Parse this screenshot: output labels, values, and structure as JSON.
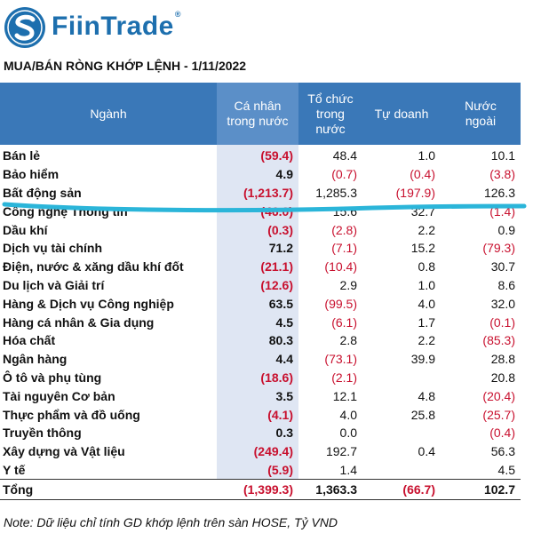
{
  "brand": {
    "name": "FiinTrade",
    "trademark": "®",
    "logo_icon": "fiintrade-s-logo-icon",
    "color": "#1d6fae"
  },
  "title": "MUA/BÁN RÒNG KHỚP LỆNH - 1/11/2022",
  "table": {
    "headers": [
      "Ngành",
      "Cá nhân trong nước",
      "Tổ chức trong nước",
      "Tự doanh",
      "Nước ngoài"
    ],
    "header_lines": [
      [
        "Ngành"
      ],
      [
        "Cá nhân",
        "trong nước"
      ],
      [
        "Tổ chức",
        "trong",
        "nước"
      ],
      [
        "Tự doanh"
      ],
      [
        "Nước",
        "ngoài"
      ]
    ],
    "rows": [
      {
        "name": "Bán lẻ",
        "values": [
          "(59.4)",
          "48.4",
          "1.0",
          "10.1"
        ]
      },
      {
        "name": "Bảo hiểm",
        "values": [
          "4.9",
          "(0.7)",
          "(0.4)",
          "(3.8)"
        ]
      },
      {
        "name": "Bất động sản",
        "values": [
          "(1,213.7)",
          "1,285.3",
          "(197.9)",
          "126.3"
        ]
      },
      {
        "name": "Công nghệ Thông tin",
        "values": [
          "(46.0)",
          "15.6",
          "32.7",
          "(1.4)"
        ]
      },
      {
        "name": "Dầu khí",
        "values": [
          "(0.3)",
          "(2.8)",
          "2.2",
          "0.9"
        ]
      },
      {
        "name": "Dịch vụ tài chính",
        "values": [
          "71.2",
          "(7.1)",
          "15.2",
          "(79.3)"
        ]
      },
      {
        "name": "Điện, nước & xăng dầu khí đốt",
        "values": [
          "(21.1)",
          "(10.4)",
          "0.8",
          "30.7"
        ]
      },
      {
        "name": "Du lịch và Giải trí",
        "values": [
          "(12.6)",
          "2.9",
          "1.0",
          "8.6"
        ]
      },
      {
        "name": "Hàng & Dịch vụ Công nghiệp",
        "values": [
          "63.5",
          "(99.5)",
          "4.0",
          "32.0"
        ]
      },
      {
        "name": "Hàng cá nhân & Gia dụng",
        "values": [
          "4.5",
          "(6.1)",
          "1.7",
          "(0.1)"
        ]
      },
      {
        "name": "Hóa chất",
        "values": [
          "80.3",
          "2.8",
          "2.2",
          "(85.3)"
        ]
      },
      {
        "name": "Ngân hàng",
        "values": [
          "4.4",
          "(73.1)",
          "39.9",
          "28.8"
        ]
      },
      {
        "name": "Ô tô và phụ tùng",
        "values": [
          "(18.6)",
          "(2.1)",
          "",
          "20.8"
        ]
      },
      {
        "name": "Tài nguyên Cơ bản",
        "values": [
          "3.5",
          "12.1",
          "4.8",
          "(20.4)"
        ]
      },
      {
        "name": "Thực phẩm và đồ uống",
        "values": [
          "(4.1)",
          "4.0",
          "25.8",
          "(25.7)"
        ]
      },
      {
        "name": "Truyền thông",
        "values": [
          "0.3",
          "0.0",
          "",
          "(0.4)"
        ]
      },
      {
        "name": "Xây dựng và Vật liệu",
        "values": [
          "(249.4)",
          "192.7",
          "0.4",
          "56.3"
        ]
      },
      {
        "name": "Y tế",
        "values": [
          "(5.9)",
          "1.4",
          "",
          "4.5"
        ]
      }
    ],
    "total": {
      "name": "Tổng",
      "values": [
        "(1,399.3)",
        "1,363.3",
        "(66.7)",
        "102.7"
      ]
    }
  },
  "note": "Note: Dữ liệu chỉ tính GD khớp lệnh trên sàn HOSE, Tỷ VND",
  "colors": {
    "header_bg": "#3a78b8",
    "header_highlight": "#5b8fc8",
    "column_highlight": "#dfe6f3",
    "negative": "#c8102e",
    "annotation_line": "#2bb5d9"
  }
}
